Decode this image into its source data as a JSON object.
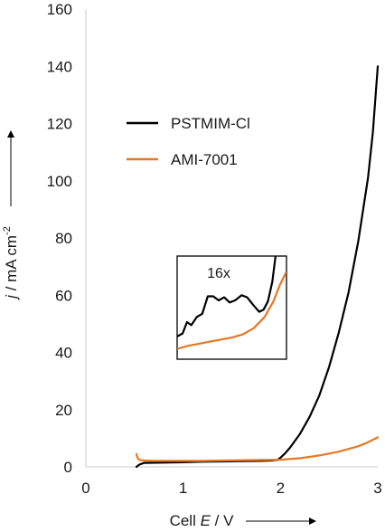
{
  "chart_data": {
    "type": "line",
    "title": "",
    "xlabel": "Cell E / V",
    "xlabel_parts": {
      "prefix": "Cell ",
      "var": "E",
      "suffix": " / V"
    },
    "ylabel": "j / mA cm-2",
    "ylabel_parts": {
      "var": "j",
      "unit": " / mA cm",
      "sup": "-2"
    },
    "xlim": [
      0,
      3
    ],
    "ylim": [
      0,
      160
    ],
    "xticks": [
      0,
      1,
      2,
      3
    ],
    "yticks": [
      0,
      20,
      40,
      60,
      80,
      100,
      120,
      140,
      160
    ],
    "grid": false,
    "legend_position": "upper-left",
    "series": [
      {
        "name": "PSTMIM-Cl",
        "color": "#000000",
        "x": [
          0.52,
          0.55,
          0.6,
          0.8,
          1.0,
          1.2,
          1.4,
          1.6,
          1.8,
          1.9,
          1.97,
          2.0,
          2.05,
          2.1,
          2.2,
          2.3,
          2.4,
          2.5,
          2.6,
          2.7,
          2.8,
          2.9,
          2.95,
          3.0
        ],
        "y": [
          0,
          0.8,
          1.4,
          1.5,
          1.6,
          1.8,
          1.9,
          2.0,
          2.1,
          2.2,
          2.4,
          3.2,
          4.8,
          6.8,
          11.5,
          17.5,
          25,
          35,
          47,
          61,
          79,
          101,
          117,
          140
        ]
      },
      {
        "name": "AMI-7001",
        "color": "#e87722",
        "x": [
          0.52,
          0.53,
          0.55,
          0.6,
          0.7,
          0.8,
          1.0,
          1.2,
          1.4,
          1.6,
          1.8,
          2.0,
          2.2,
          2.4,
          2.6,
          2.8,
          2.9,
          3.0
        ],
        "y": [
          4.5,
          3.2,
          2.4,
          2.2,
          2.1,
          2.1,
          2.1,
          2.1,
          2.2,
          2.3,
          2.4,
          2.5,
          3.0,
          4.0,
          5.3,
          7.2,
          8.6,
          10.3
        ]
      }
    ],
    "inset": {
      "label": "16x",
      "series": [
        {
          "name": "PSTMIM-Cl",
          "color": "#000000",
          "points": [
            [
              0.0,
              0.22
            ],
            [
              0.05,
              0.25
            ],
            [
              0.09,
              0.36
            ],
            [
              0.13,
              0.33
            ],
            [
              0.18,
              0.41
            ],
            [
              0.23,
              0.44
            ],
            [
              0.28,
              0.61
            ],
            [
              0.33,
              0.61
            ],
            [
              0.38,
              0.57
            ],
            [
              0.43,
              0.6
            ],
            [
              0.48,
              0.55
            ],
            [
              0.53,
              0.57
            ],
            [
              0.59,
              0.62
            ],
            [
              0.64,
              0.6
            ],
            [
              0.7,
              0.52
            ],
            [
              0.75,
              0.46
            ],
            [
              0.79,
              0.48
            ],
            [
              0.83,
              0.56
            ],
            [
              0.87,
              0.75
            ],
            [
              0.9,
              1.0
            ]
          ]
        },
        {
          "name": "AMI-7001",
          "color": "#e87722",
          "points": [
            [
              0.0,
              0.1
            ],
            [
              0.1,
              0.13
            ],
            [
              0.2,
              0.15
            ],
            [
              0.3,
              0.17
            ],
            [
              0.4,
              0.19
            ],
            [
              0.5,
              0.21
            ],
            [
              0.6,
              0.24
            ],
            [
              0.7,
              0.3
            ],
            [
              0.8,
              0.41
            ],
            [
              0.88,
              0.56
            ],
            [
              0.94,
              0.72
            ],
            [
              1.0,
              0.85
            ]
          ]
        }
      ]
    }
  }
}
